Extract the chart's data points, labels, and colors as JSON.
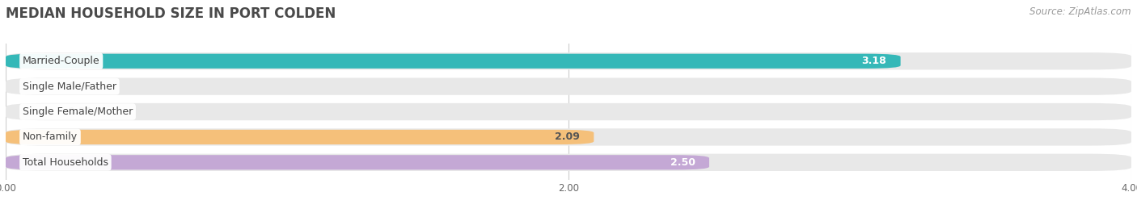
{
  "title": "MEDIAN HOUSEHOLD SIZE IN PORT COLDEN",
  "source": "Source: ZipAtlas.com",
  "categories": [
    "Married-Couple",
    "Single Male/Father",
    "Single Female/Mother",
    "Non-family",
    "Total Households"
  ],
  "values": [
    3.18,
    0.0,
    0.0,
    2.09,
    2.5
  ],
  "bar_colors": [
    "#35b8b8",
    "#a8bcdf",
    "#f4a0b5",
    "#f5c07a",
    "#c4a8d5"
  ],
  "bar_label_inside_color": [
    "#ffffff",
    "#555555",
    "#555555",
    "#555555",
    "#ffffff"
  ],
  "xlim": [
    0,
    4.0
  ],
  "xticks": [
    0.0,
    2.0,
    4.0
  ],
  "xtick_labels": [
    "0.00",
    "2.00",
    "4.00"
  ],
  "background_color": "#ffffff",
  "bar_bg_color": "#e8e8e8",
  "title_fontsize": 12,
  "source_fontsize": 8.5,
  "bar_height": 0.58,
  "value_label_fontsize": 9,
  "cat_label_fontsize": 9,
  "value_outside_threshold": 0.5
}
